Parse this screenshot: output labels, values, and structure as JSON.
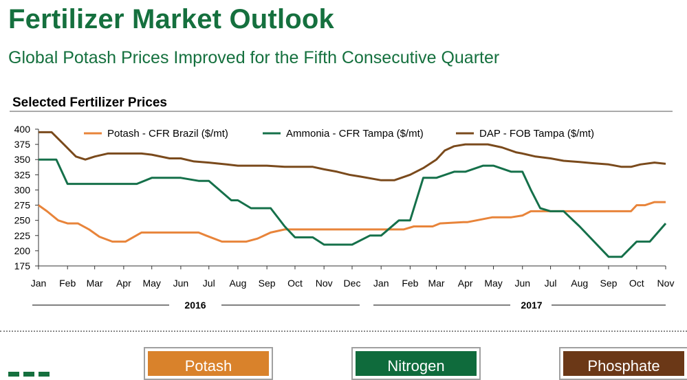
{
  "header": {
    "title": "Fertilizer Market Outlook",
    "subtitle": "Global Potash Prices Improved for the Fifth Consecutive Quarter"
  },
  "colors": {
    "brand_green": "#15703e",
    "potash": "#e8843a",
    "ammonia": "#15704a",
    "dap": "#7a4a1c",
    "potash_box": "#d9822b",
    "nitrogen_box": "#0f6b3c",
    "phosphate_box": "#6b3817"
  },
  "categories": [
    {
      "label": "Potash",
      "color": "#d9822b"
    },
    {
      "label": "Nitrogen",
      "color": "#0f6b3c"
    },
    {
      "label": "Phosphate",
      "color": "#6b3817"
    }
  ],
  "chart_data": {
    "type": "line",
    "title": "Selected Fertilizer Prices",
    "ylim": [
      175,
      400
    ],
    "yticks": [
      175,
      200,
      225,
      250,
      275,
      300,
      325,
      350,
      375,
      400
    ],
    "x_tick_labels": [
      "Jan",
      "Feb",
      "Mar",
      "Apr",
      "May",
      "Jun",
      "Jul",
      "Aug",
      "Sep",
      "Oct",
      "Nov",
      "Dec",
      "Jan",
      "Feb",
      "Mar",
      "Apr",
      "May",
      "Jun",
      "Jul",
      "Aug",
      "Sep",
      "Oct",
      "Nov"
    ],
    "years": [
      "2016",
      "2017"
    ],
    "legend_position": "top",
    "grid": false,
    "series": [
      {
        "name": "Potash - CFR Brazil ($/mt)",
        "color": "#e8843a",
        "x": [
          "2016-01-01",
          "2016-01-10",
          "2016-01-22",
          "2016-02-01",
          "2016-02-12",
          "2016-02-24",
          "2016-03-06",
          "2016-03-20",
          "2016-03-30",
          "2016-04-03",
          "2016-04-20",
          "2016-05-20",
          "2016-06-05",
          "2016-06-20",
          "2016-06-28",
          "2016-07-15",
          "2016-07-28",
          "2016-08-10",
          "2016-08-22",
          "2016-09-05",
          "2016-09-20",
          "2016-10-20",
          "2016-11-20",
          "2016-12-20",
          "2017-01-25",
          "2017-02-05",
          "2017-02-25",
          "2017-03-05",
          "2017-03-30",
          "2017-04-03",
          "2017-04-30",
          "2017-05-20",
          "2017-06-01",
          "2017-06-10",
          "2017-07-10",
          "2017-08-15",
          "2017-09-15",
          "2017-09-25",
          "2017-10-01",
          "2017-10-10",
          "2017-10-20",
          "2017-11-01"
        ],
        "y": [
          275,
          265,
          250,
          245,
          245,
          235,
          223,
          215,
          215,
          215,
          230,
          230,
          230,
          230,
          225,
          215,
          215,
          215,
          220,
          230,
          235,
          235,
          235,
          235,
          235,
          240,
          240,
          245,
          247,
          247,
          255,
          255,
          258,
          265,
          265,
          265,
          265,
          265,
          275,
          275,
          280,
          280
        ]
      },
      {
        "name": "Ammonia - CFR Tampa ($/mt)",
        "color": "#15704a",
        "x": [
          "2016-01-01",
          "2016-01-20",
          "2016-02-01",
          "2016-02-15",
          "2016-04-15",
          "2016-05-01",
          "2016-06-01",
          "2016-06-20",
          "2016-07-01",
          "2016-07-25",
          "2016-08-01",
          "2016-08-15",
          "2016-09-05",
          "2016-09-20",
          "2016-10-01",
          "2016-10-20",
          "2016-11-01",
          "2016-11-20",
          "2016-12-01",
          "2016-12-20",
          "2017-01-01",
          "2017-01-20",
          "2017-02-01",
          "2017-02-15",
          "2017-03-01",
          "2017-03-20",
          "2017-04-01",
          "2017-04-20",
          "2017-05-01",
          "2017-05-20",
          "2017-06-01",
          "2017-06-10",
          "2017-06-20",
          "2017-07-01",
          "2017-07-15",
          "2017-08-01",
          "2017-09-01",
          "2017-09-15",
          "2017-10-01",
          "2017-10-15",
          "2017-11-01"
        ],
        "y": [
          350,
          350,
          310,
          310,
          310,
          320,
          320,
          315,
          315,
          283,
          283,
          270,
          270,
          240,
          222,
          222,
          210,
          210,
          210,
          225,
          225,
          250,
          250,
          320,
          320,
          330,
          330,
          340,
          340,
          330,
          330,
          300,
          270,
          265,
          265,
          240,
          190,
          190,
          215,
          215,
          245
        ]
      },
      {
        "name": "DAP - FOB Tampa ($/mt)",
        "color": "#7a4a1c",
        "x": [
          "2016-01-01",
          "2016-01-15",
          "2016-01-28",
          "2016-02-10",
          "2016-02-20",
          "2016-03-01",
          "2016-03-15",
          "2016-04-20",
          "2016-05-01",
          "2016-05-20",
          "2016-06-01",
          "2016-06-15",
          "2016-07-01",
          "2016-07-20",
          "2016-08-01",
          "2016-08-20",
          "2016-09-01",
          "2016-09-20",
          "2016-10-01",
          "2016-10-20",
          "2016-11-01",
          "2016-11-15",
          "2016-11-28",
          "2016-12-10",
          "2017-01-01",
          "2017-01-15",
          "2017-02-01",
          "2017-02-15",
          "2017-03-01",
          "2017-03-10",
          "2017-03-20",
          "2017-04-01",
          "2017-04-15",
          "2017-04-25",
          "2017-05-10",
          "2017-05-25",
          "2017-06-01",
          "2017-06-15",
          "2017-07-01",
          "2017-07-15",
          "2017-08-01",
          "2017-08-15",
          "2017-09-01",
          "2017-09-15",
          "2017-09-25",
          "2017-10-05",
          "2017-10-20",
          "2017-11-01"
        ],
        "y": [
          395,
          395,
          375,
          355,
          350,
          355,
          360,
          360,
          358,
          352,
          352,
          347,
          345,
          342,
          340,
          340,
          340,
          338,
          338,
          338,
          334,
          330,
          325,
          322,
          316,
          316,
          325,
          336,
          350,
          365,
          372,
          375,
          375,
          375,
          370,
          362,
          360,
          355,
          352,
          348,
          346,
          344,
          342,
          338,
          338,
          342,
          345,
          343
        ]
      }
    ]
  }
}
